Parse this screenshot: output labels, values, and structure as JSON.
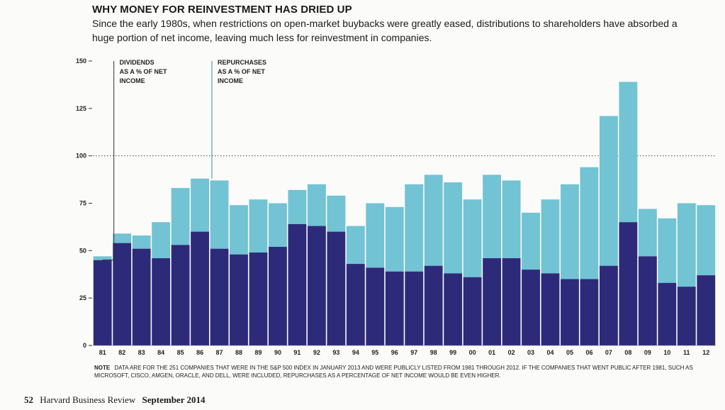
{
  "header": {
    "title": "WHY MONEY FOR REINVESTMENT HAS DRIED UP",
    "subtitle": "Since the early 1980s, when restrictions on open-market buybacks were greatly eased, distributions to shareholders have absorbed a huge portion of net income, leaving much less for reinvestment in companies."
  },
  "chart_data": {
    "type": "bar",
    "stacked": true,
    "categories": [
      "81",
      "82",
      "83",
      "84",
      "85",
      "86",
      "87",
      "88",
      "89",
      "90",
      "91",
      "92",
      "93",
      "94",
      "95",
      "96",
      "97",
      "98",
      "99",
      "00",
      "01",
      "02",
      "03",
      "04",
      "05",
      "06",
      "07",
      "08",
      "09",
      "10",
      "11",
      "12"
    ],
    "series": [
      {
        "name": "DIVIDENDS AS A % OF NET INCOME",
        "color": "#2e2a7a",
        "values": [
          45,
          54,
          51,
          46,
          53,
          60,
          51,
          48,
          49,
          52,
          64,
          63,
          60,
          43,
          41,
          39,
          39,
          42,
          38,
          36,
          46,
          46,
          40,
          38,
          35,
          35,
          42,
          65,
          47,
          33,
          31,
          37
        ]
      },
      {
        "name": "REPURCHASES AS A % OF NET INCOME",
        "color": "#72c3d3",
        "values": [
          2,
          5,
          7,
          19,
          30,
          28,
          36,
          26,
          28,
          23,
          18,
          22,
          19,
          20,
          34,
          34,
          46,
          48,
          48,
          41,
          44,
          41,
          30,
          39,
          50,
          59,
          79,
          74,
          25,
          34,
          44,
          37
        ]
      }
    ],
    "ylim": [
      0,
      150
    ],
    "yticks": [
      "0",
      "25",
      "50",
      "75",
      "100",
      "125",
      "150"
    ],
    "reference_line": 100,
    "annotations": [
      {
        "text": "DIVIDENDS AS A % OF NET INCOME",
        "lines": [
          "DIVIDENDS",
          "AS A % OF NET",
          "INCOME"
        ],
        "points_to": "81",
        "series": 0
      },
      {
        "text": "REPURCHASES AS A % OF NET INCOME",
        "lines": [
          "REPURCHASES",
          "AS A % OF NET",
          "INCOME"
        ],
        "points_to": "86",
        "series": 1
      }
    ]
  },
  "note": {
    "label": "NOTE",
    "text": "DATA ARE FOR THE 251 COMPANIES THAT WERE IN THE S&P 500 INDEX IN JANUARY 2013 AND WERE PUBLICLY LISTED FROM 1981 THROUGH 2012. IF THE COMPANIES THAT WENT PUBLIC AFTER 1981, SUCH AS MICROSOFT, CISCO, AMGEN, ORACLE, AND DELL, WERE INCLUDED, REPURCHASES AS A PERCENTAGE OF NET INCOME WOULD BE EVEN HIGHER."
  },
  "footer": {
    "page": "52",
    "publication": "Harvard Business Review",
    "issue": "September 2014"
  }
}
